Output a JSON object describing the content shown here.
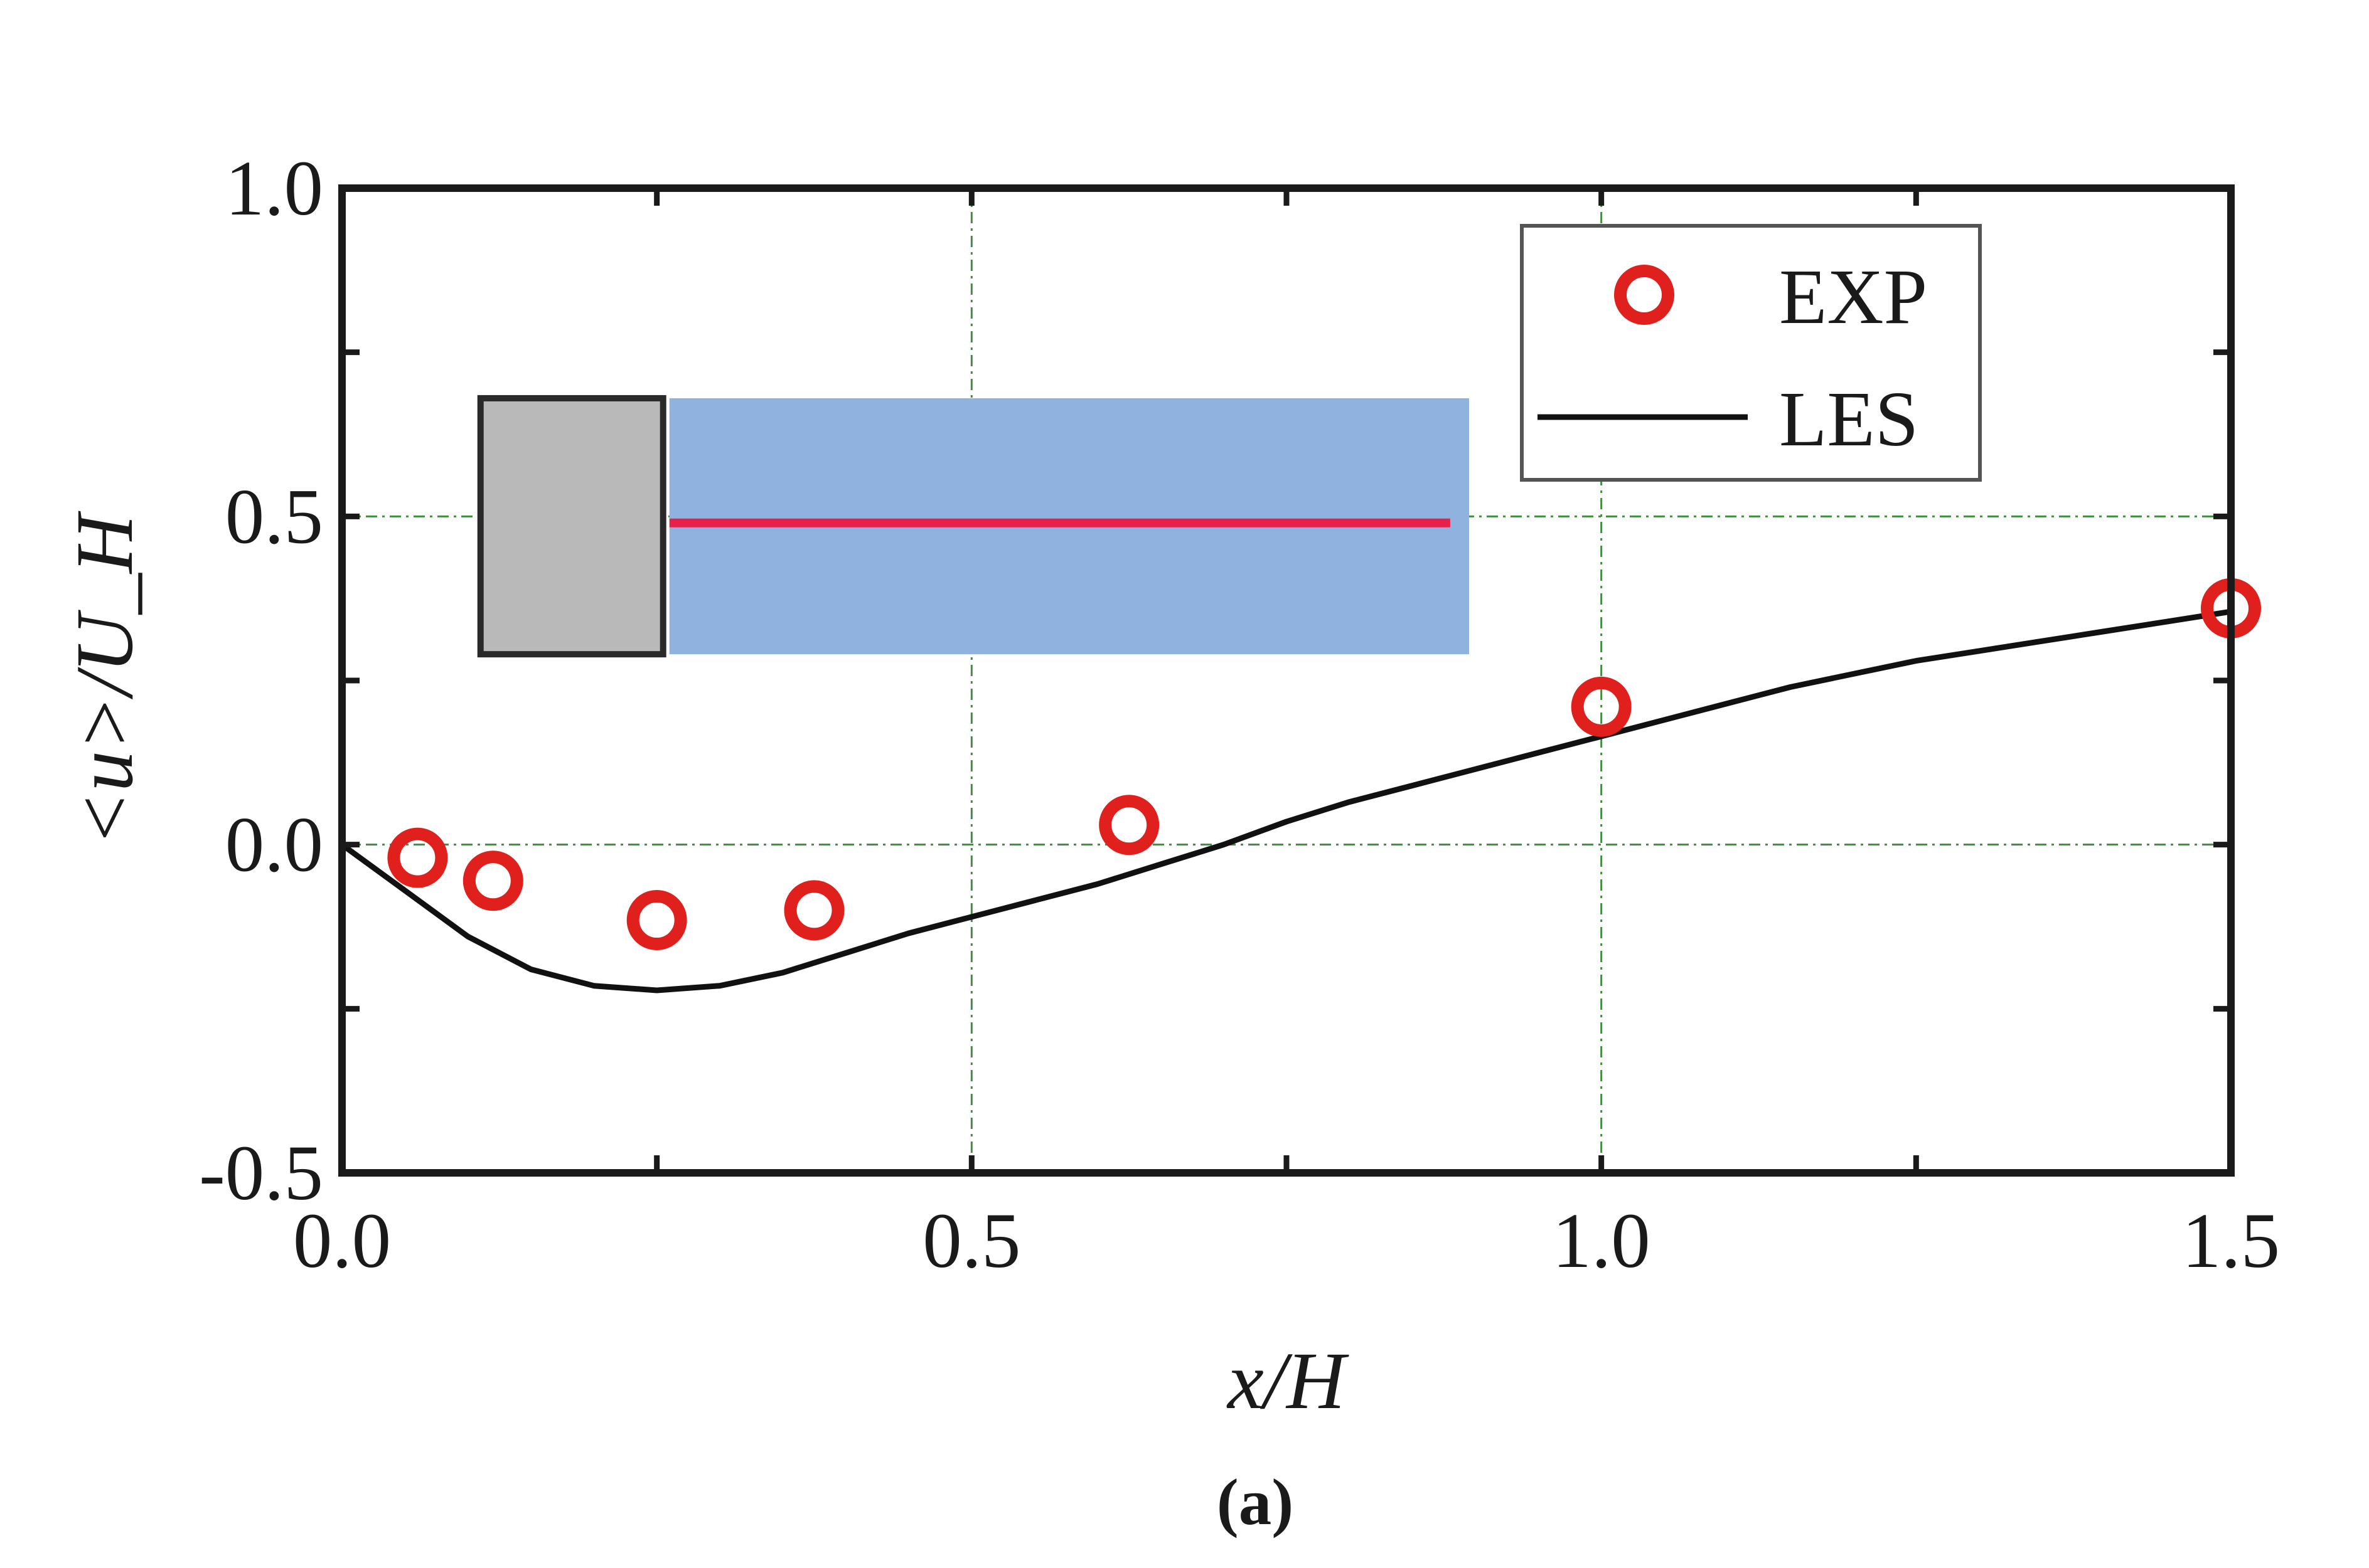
{
  "chart_data": {
    "type": "line",
    "xlabel": "x/H",
    "ylabel": "<u>/U_H",
    "xlim": [
      0.0,
      1.5
    ],
    "ylim": [
      -0.5,
      1.0
    ],
    "xticks": [
      0.0,
      0.5,
      1.0,
      1.5
    ],
    "xtick_labels": [
      "0.0",
      "0.5",
      "1.0",
      "1.5"
    ],
    "yticks": [
      -0.5,
      0.0,
      0.5,
      1.0
    ],
    "ytick_labels": [
      "-0.5",
      "0.0",
      "0.5",
      "1.0"
    ],
    "grid": true,
    "legend_position": "top-right",
    "caption": "(a)",
    "series": [
      {
        "name": "EXP",
        "style": "markers",
        "color": "#e0201c",
        "x": [
          0.06,
          0.12,
          0.25,
          0.375,
          0.625,
          1.0,
          1.5
        ],
        "y": [
          -0.02,
          -0.055,
          -0.115,
          -0.1,
          0.03,
          0.21,
          0.36
        ]
      },
      {
        "name": "LES",
        "style": "line",
        "color": "#111111",
        "x": [
          0.0,
          0.05,
          0.1,
          0.15,
          0.2,
          0.25,
          0.3,
          0.35,
          0.4,
          0.45,
          0.5,
          0.55,
          0.6,
          0.65,
          0.7,
          0.75,
          0.8,
          0.85,
          0.9,
          0.95,
          1.0,
          1.05,
          1.1,
          1.15,
          1.2,
          1.25,
          1.3,
          1.35,
          1.4,
          1.45,
          1.5
        ],
        "y": [
          0.0,
          -0.07,
          -0.14,
          -0.19,
          -0.215,
          -0.222,
          -0.215,
          -0.195,
          -0.165,
          -0.135,
          -0.11,
          -0.085,
          -0.06,
          -0.03,
          0.0,
          0.035,
          0.065,
          0.09,
          0.115,
          0.14,
          0.165,
          0.19,
          0.215,
          0.24,
          0.26,
          0.28,
          0.295,
          0.31,
          0.325,
          0.34,
          0.355
        ]
      }
    ]
  },
  "inset": {
    "solid_color": "#b9b9b9",
    "domain_color": "#8fb2df",
    "line_color": "#e8214a"
  }
}
